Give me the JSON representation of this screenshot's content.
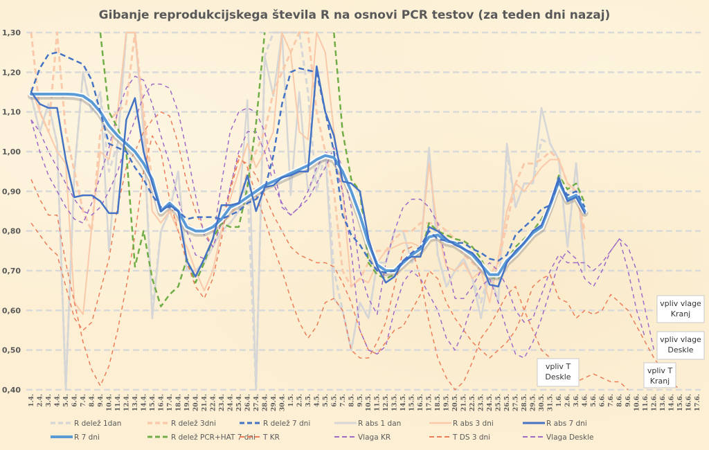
{
  "chart_data": {
    "type": "line",
    "title": "Gibanje reprodukcijskega števila R na osnovi PCR testov (za teden dni nazaj)",
    "xlabel": "",
    "ylabel": "",
    "ylim": [
      0.4,
      1.3
    ],
    "yticks": [
      "0,40",
      "0,50",
      "0,60",
      "0,70",
      "0,80",
      "0,90",
      "1,00",
      "1,10",
      "1,20",
      "1,30"
    ],
    "ytick_values": [
      0.4,
      0.5,
      0.6,
      0.7,
      0.8,
      0.9,
      1.0,
      1.1,
      1.2,
      1.3
    ],
    "grid": "horizontal dashed",
    "legend_position": "bottom",
    "categories": [
      "1.4.",
      "2.4.",
      "3.4.",
      "4.4.",
      "5.4.",
      "6.4.",
      "7.4.",
      "8.4.",
      "9.4.",
      "10.4.",
      "11.4.",
      "12.4.",
      "13.4.",
      "14.4.",
      "15.4.",
      "16.4.",
      "17.4.",
      "18.4.",
      "19.4.",
      "20.4.",
      "21.4.",
      "22.4.",
      "23.4.",
      "24.4.",
      "25.4.",
      "26.4.",
      "27.4.",
      "28.4.",
      "29.4.",
      "30.4.",
      "1.5.",
      "2.5.",
      "3.5.",
      "4.5.",
      "5.5.",
      "6.5.",
      "7.5.",
      "8.5.",
      "9.5.",
      "10.5.",
      "11.5.",
      "12.5.",
      "13.5.",
      "14.5.",
      "15.5.",
      "16.5.",
      "17.5.",
      "18.5.",
      "19.5.",
      "20.5.",
      "21.5.",
      "22.5.",
      "23.5.",
      "24.5.",
      "25.5.",
      "26.5.",
      "27.5.",
      "28.5.",
      "29.5.",
      "30.5.",
      "31.5.",
      "1.6.",
      "2.6.",
      "3.6.",
      "4.6.",
      "5.6.",
      "6.6.",
      "7.6.",
      "8.6.",
      "9.6.",
      "10.6.",
      "11.6.",
      "12.6.",
      "13.6.",
      "14.6.",
      "15.6.",
      "16.6.",
      "17.6."
    ],
    "series": [
      {
        "name": "R delež 1dan",
        "color": "#d6d6d6",
        "dash": "dashed",
        "width": 3,
        "values": [
          1.14,
          1.05,
          1.12,
          1.02,
          0.4,
          0.95,
          1.2,
          1.1,
          1.15,
          0.95,
          1.02,
          1.3,
          1.3,
          1.05,
          0.6,
          0.8,
          0.85,
          0.95,
          0.7,
          0.7,
          0.72,
          0.76,
          0.8,
          0.82,
          0.85,
          0.92,
          0.4,
          1.24,
          1.3,
          1.3,
          1.3,
          1.3,
          1.15,
          0.9,
          1.0,
          0.7,
          0.6,
          0.5,
          0.62,
          0.58,
          0.72,
          0.72,
          0.8,
          0.8,
          0.72,
          0.75,
          1.0,
          0.74,
          0.66,
          0.7,
          0.73,
          0.68,
          0.62,
          0.7,
          0.62,
          1.0,
          0.86,
          0.92,
          0.92,
          1.03,
          1.02,
          0.98,
          0.76,
          0.97,
          0.7
        ]
      },
      {
        "name": "R delež 3dni",
        "color": "#f9c9aa",
        "dash": "dashed",
        "width": 3,
        "values": [
          1.3,
          1.1,
          1.05,
          1.3,
          1.05,
          0.95,
          0.85,
          0.8,
          1.05,
          1.08,
          1.1,
          1.12,
          1.3,
          1.1,
          0.92,
          0.85,
          0.85,
          0.82,
          0.82,
          0.8,
          0.8,
          0.8,
          0.82,
          0.84,
          0.87,
          0.95,
          1.0,
          1.05,
          1.15,
          1.2,
          1.25,
          1.3,
          1.3,
          1.1,
          1.0,
          0.9,
          0.7,
          0.66,
          0.68,
          0.72,
          0.75,
          0.75,
          0.78,
          0.8,
          0.8,
          0.82,
          0.82,
          0.82,
          0.8,
          0.78,
          0.74,
          0.72,
          0.7,
          0.69,
          0.72,
          0.82,
          0.92,
          0.97,
          0.97,
          0.98,
          1.0,
          0.98,
          0.92,
          0.9,
          0.8
        ]
      },
      {
        "name": "R delež 7 dni",
        "color": "#4472c4",
        "dash": "dashed",
        "width": 2.5,
        "values": [
          1.15,
          1.21,
          1.245,
          1.25,
          1.24,
          1.23,
          1.22,
          1.18,
          1.1,
          1.02,
          1.01,
          1.0,
          0.96,
          0.93,
          0.89,
          0.86,
          0.86,
          0.85,
          0.83,
          0.835,
          0.835,
          0.835,
          0.83,
          0.84,
          0.85,
          0.87,
          0.88,
          0.905,
          0.99,
          1.12,
          1.2,
          1.21,
          1.205,
          1.2,
          1.1,
          1.0,
          0.84,
          0.79,
          0.765,
          0.73,
          0.7,
          0.695,
          0.7,
          0.725,
          0.745,
          0.76,
          0.8,
          0.78,
          0.775,
          0.77,
          0.77,
          0.755,
          0.745,
          0.73,
          0.725,
          0.74,
          0.79,
          0.81,
          0.83,
          0.855,
          0.865,
          0.925,
          0.89,
          0.9,
          0.86
        ]
      },
      {
        "name": "R abs 1 dan",
        "color": "#d6d6d6",
        "dash": "solid",
        "width": 2.5,
        "values": [
          1.14,
          1.05,
          1.12,
          1.02,
          0.4,
          0.95,
          1.2,
          1.1,
          1.15,
          0.75,
          1.02,
          1.3,
          1.3,
          1.05,
          0.58,
          0.8,
          0.85,
          0.95,
          0.7,
          0.7,
          0.72,
          0.76,
          0.8,
          0.82,
          0.85,
          1.13,
          0.4,
          1.24,
          1.14,
          1.3,
          0.89,
          1.15,
          0.9,
          0.95,
          1.0,
          0.63,
          0.6,
          0.5,
          0.62,
          0.58,
          0.72,
          0.72,
          0.8,
          0.8,
          0.72,
          0.75,
          1.01,
          0.74,
          0.66,
          0.7,
          0.73,
          0.68,
          0.58,
          0.7,
          0.62,
          1.02,
          0.86,
          0.92,
          0.92,
          1.11,
          1.02,
          0.98,
          0.76,
          0.97,
          0.7
        ]
      },
      {
        "name": "R abs 3 dni",
        "color": "#f9c9aa",
        "dash": "solid",
        "width": 2,
        "values": [
          1.16,
          1.1,
          1.05,
          1.0,
          0.97,
          0.62,
          0.59,
          0.81,
          1.0,
          0.98,
          1.1,
          1.3,
          1.3,
          1.08,
          0.85,
          0.82,
          0.85,
          0.8,
          0.76,
          0.7,
          0.65,
          0.7,
          0.8,
          0.88,
          0.95,
          1.02,
          0.96,
          1.0,
          1.05,
          1.3,
          1.25,
          1.05,
          1.03,
          1.3,
          1.25,
          1.05,
          0.9,
          0.66,
          0.68,
          0.67,
          0.72,
          0.75,
          0.76,
          0.77,
          0.77,
          0.76,
          0.97,
          0.8,
          0.71,
          0.7,
          0.72,
          0.68,
          0.7,
          0.62,
          0.73,
          0.85,
          0.92,
          0.9,
          0.93,
          0.96,
          0.98,
          0.98,
          0.92,
          0.9,
          0.78
        ]
      },
      {
        "name": "R abs 7 dni",
        "color": "#4472c4",
        "dash": "solid",
        "width": 2.5,
        "values": [
          1.15,
          1.12,
          1.11,
          1.11,
          0.98,
          0.885,
          0.89,
          0.89,
          0.875,
          0.845,
          0.845,
          1.08,
          1.135,
          1.0,
          0.92,
          0.85,
          0.865,
          0.85,
          0.725,
          0.685,
          0.73,
          0.78,
          0.865,
          0.865,
          0.87,
          0.94,
          0.85,
          0.91,
          0.915,
          0.935,
          0.94,
          0.95,
          0.95,
          1.215,
          1.1,
          1.04,
          0.925,
          0.92,
          0.9,
          0.78,
          0.71,
          0.67,
          0.685,
          0.725,
          0.735,
          0.735,
          0.81,
          0.8,
          0.78,
          0.765,
          0.755,
          0.745,
          0.72,
          0.665,
          0.66,
          0.72,
          0.75,
          0.77,
          0.8,
          0.815,
          0.87,
          0.935,
          0.875,
          0.885,
          0.845
        ]
      },
      {
        "name": "R 7 dni",
        "color": "#5b9bd5",
        "dash": "solid",
        "width": 4,
        "values": [
          1.145,
          1.145,
          1.145,
          1.145,
          1.145,
          1.144,
          1.14,
          1.125,
          1.1,
          1.065,
          1.04,
          1.02,
          1.0,
          0.97,
          0.93,
          0.85,
          0.87,
          0.85,
          0.81,
          0.8,
          0.8,
          0.81,
          0.83,
          0.86,
          0.87,
          0.885,
          0.9,
          0.915,
          0.925,
          0.935,
          0.945,
          0.955,
          0.965,
          0.98,
          0.99,
          0.985,
          0.95,
          0.9,
          0.84,
          0.77,
          0.715,
          0.7,
          0.7,
          0.72,
          0.74,
          0.755,
          0.785,
          0.79,
          0.775,
          0.77,
          0.755,
          0.74,
          0.715,
          0.69,
          0.69,
          0.725,
          0.745,
          0.77,
          0.795,
          0.81,
          0.865,
          0.925,
          0.88,
          0.89,
          0.85
        ]
      },
      {
        "name": "R delež PCR+HAT 7 dni",
        "color": "#70ad47",
        "dash": "dashed",
        "width": 2.5,
        "values": [
          null,
          null,
          null,
          null,
          null,
          null,
          null,
          null,
          1.3,
          1.1,
          1.06,
          1.0,
          0.71,
          0.8,
          0.68,
          0.61,
          0.64,
          0.66,
          0.73,
          0.67,
          0.72,
          0.78,
          0.82,
          0.81,
          0.81,
          0.91,
          1.07,
          1.3,
          null,
          null,
          null,
          null,
          null,
          null,
          null,
          1.3,
          1.05,
          0.93,
          0.9,
          0.72,
          0.69,
          0.68,
          0.69,
          0.72,
          0.745,
          0.74,
          0.82,
          0.8,
          0.79,
          0.78,
          0.775,
          0.76,
          0.73,
          0.685,
          0.68,
          0.725,
          0.76,
          0.78,
          0.8,
          0.83,
          0.87,
          0.94,
          0.905,
          0.92,
          0.87
        ]
      },
      {
        "name": "T KR",
        "color": "#ed7d59",
        "dash": "dashed",
        "width": 1.5,
        "values": [
          0.82,
          0.79,
          0.76,
          0.74,
          0.66,
          0.58,
          0.55,
          0.57,
          0.65,
          0.73,
          0.86,
          0.96,
          1.0,
          1.05,
          1.08,
          1.1,
          1.09,
          1.02,
          0.92,
          0.85,
          0.8,
          0.76,
          0.82,
          0.9,
          0.98,
          0.97,
          0.94,
          0.89,
          0.84,
          0.8,
          0.76,
          0.74,
          0.73,
          0.72,
          0.72,
          0.71,
          0.67,
          0.62,
          0.55,
          0.5,
          0.49,
          0.52,
          0.55,
          0.56,
          0.6,
          0.64,
          0.7,
          0.68,
          0.62,
          0.58,
          0.55,
          0.52,
          0.5,
          0.48,
          0.5,
          0.52,
          0.55,
          0.6,
          0.66,
          0.68,
          0.69,
          0.63,
          0.62,
          0.58,
          0.6,
          0.59,
          0.6,
          0.64,
          0.62,
          0.6,
          0.56,
          0.52,
          0.48,
          0.45,
          0.42,
          0.4,
          null,
          null
        ]
      },
      {
        "name": "Vlaga KR",
        "color": "#9e6ac8",
        "dash": "dashed",
        "width": 1.5,
        "values": [
          1.08,
          1.0,
          0.94,
          0.9,
          0.86,
          0.83,
          0.82,
          0.87,
          0.94,
          1.01,
          1.1,
          1.16,
          1.19,
          1.18,
          1.12,
          1.04,
          0.97,
          0.88,
          0.8,
          0.74,
          0.73,
          0.78,
          0.92,
          1.05,
          1.1,
          1.11,
          1.1,
          1.05,
          0.96,
          0.86,
          0.84,
          0.86,
          0.88,
          0.92,
          0.96,
          1.01,
          0.96,
          0.86,
          0.7,
          0.63,
          0.59,
          0.72,
          0.8,
          0.86,
          0.88,
          0.88,
          0.86,
          0.82,
          0.72,
          0.63,
          0.63,
          0.66,
          0.7,
          0.72,
          0.7,
          0.66,
          0.6,
          0.57,
          0.58,
          0.64,
          0.7,
          0.74,
          0.72,
          0.72,
          0.72,
          0.7,
          0.72,
          0.75,
          0.78,
          0.7,
          0.6,
          0.53,
          null,
          null,
          null,
          null,
          null,
          null
        ]
      },
      {
        "name": "T DS 3 dni",
        "color": "#ed7d59",
        "dash": "dashed",
        "width": 1.5,
        "values": [
          0.93,
          0.88,
          0.84,
          0.84,
          0.72,
          0.62,
          0.52,
          0.45,
          0.41,
          0.46,
          0.55,
          0.66,
          0.79,
          0.95,
          1.04,
          1.0,
          0.88,
          0.8,
          0.72,
          0.66,
          0.63,
          0.68,
          0.78,
          0.91,
          0.99,
          0.96,
          0.89,
          0.83,
          0.76,
          0.7,
          0.63,
          0.57,
          0.53,
          0.56,
          0.62,
          0.63,
          0.6,
          0.5,
          0.48,
          0.48,
          0.52,
          0.57,
          0.66,
          0.75,
          0.76,
          0.68,
          0.57,
          0.48,
          0.43,
          0.4,
          0.42,
          0.47,
          0.53,
          0.56,
          0.6,
          0.64,
          0.66,
          0.6,
          0.55,
          0.5,
          0.48,
          0.46,
          0.43,
          0.42,
          0.43,
          0.44,
          0.43,
          0.42,
          0.42,
          0.4,
          null,
          null,
          null,
          null,
          null,
          null,
          null,
          null
        ]
      },
      {
        "name": "Vlaga Deskle",
        "color": "#9e6ac8",
        "dash": "dashed",
        "width": 1.5,
        "values": [
          1.08,
          1.05,
          1.0,
          0.96,
          0.92,
          0.88,
          0.85,
          0.84,
          0.86,
          0.9,
          0.95,
          1.02,
          1.08,
          1.14,
          1.17,
          1.17,
          1.16,
          1.1,
          1.0,
          0.89,
          0.79,
          0.76,
          0.82,
          0.91,
          1.0,
          1.05,
          1.05,
          1.0,
          0.92,
          0.87,
          0.84,
          0.86,
          0.9,
          0.96,
          1.0,
          0.98,
          0.9,
          0.75,
          0.55,
          0.5,
          0.49,
          0.51,
          0.6,
          0.67,
          0.7,
          0.68,
          0.64,
          0.6,
          0.53,
          0.5,
          0.55,
          0.62,
          0.66,
          0.68,
          0.62,
          0.55,
          0.49,
          0.48,
          0.52,
          0.58,
          0.65,
          0.72,
          0.75,
          0.73,
          0.68,
          0.66,
          0.7,
          0.75,
          0.78,
          0.76,
          0.7,
          0.6,
          0.5,
          null,
          null,
          null,
          null,
          null
        ]
      }
    ],
    "legend": [
      "R delež 1dan",
      "R delež 3dni",
      "R delež 7 dni",
      "R abs 1 dan",
      "R abs 3 dni",
      "R abs 7 dni",
      "R 7 dni",
      "R delež PCR+HAT 7 dni",
      "T KR",
      "Vlaga KR",
      "T DS 3 dni",
      "Vlaga Deskle"
    ],
    "annotations": [
      {
        "text": [
          "vpliv vlage",
          "Kranj"
        ],
        "near": "Vlaga KR end"
      },
      {
        "text": [
          "vpliv vlage",
          "Deskle"
        ],
        "near": "Vlaga Deskle end"
      },
      {
        "text": [
          "vpliv T",
          "Deskle"
        ],
        "near": "T DS 3 dni end"
      },
      {
        "text": [
          "vpliv T",
          "Kranj"
        ],
        "near": "T KR end"
      }
    ]
  }
}
